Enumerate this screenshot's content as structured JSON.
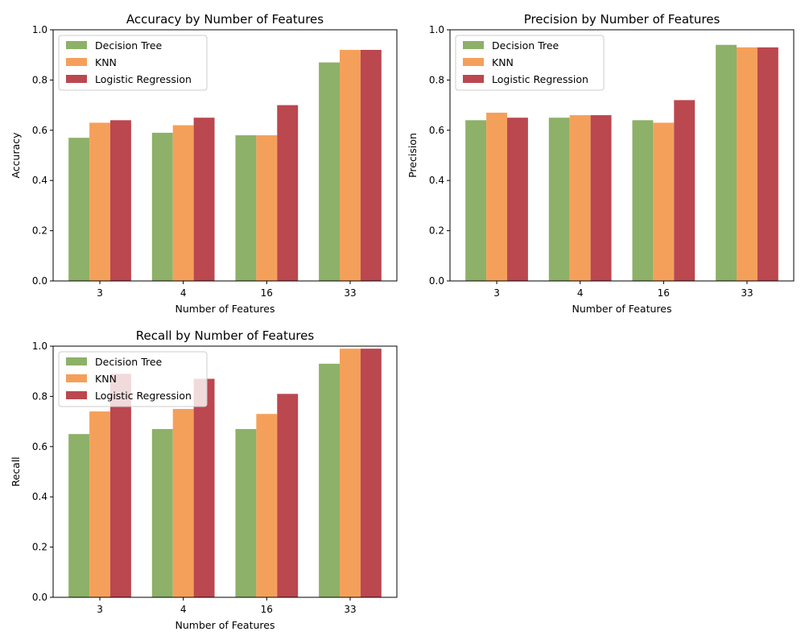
{
  "colors": {
    "Decision Tree": "#8db168",
    "KNN": "#f5a05a",
    "Logistic Regression": "#bb474f"
  },
  "chart_data": [
    {
      "type": "bar",
      "title": "Accuracy by Number of Features",
      "xlabel": "Number of Features",
      "ylabel": "Accuracy",
      "categories": [
        "3",
        "4",
        "16",
        "33"
      ],
      "ylim": [
        0,
        1.0
      ],
      "yticks": [
        "0.0",
        "0.2",
        "0.4",
        "0.6",
        "0.8",
        "1.0"
      ],
      "legend": "top-left",
      "grid": false,
      "series": [
        {
          "name": "Decision Tree",
          "values": [
            0.57,
            0.59,
            0.58,
            0.87
          ]
        },
        {
          "name": "KNN",
          "values": [
            0.63,
            0.62,
            0.58,
            0.92
          ]
        },
        {
          "name": "Logistic Regression",
          "values": [
            0.64,
            0.65,
            0.7,
            0.92
          ]
        }
      ]
    },
    {
      "type": "bar",
      "title": "Precision by Number of Features",
      "xlabel": "Number of Features",
      "ylabel": "Precision",
      "categories": [
        "3",
        "4",
        "16",
        "33"
      ],
      "ylim": [
        0,
        1.0
      ],
      "yticks": [
        "0.0",
        "0.2",
        "0.4",
        "0.6",
        "0.8",
        "1.0"
      ],
      "legend": "top-left",
      "grid": false,
      "series": [
        {
          "name": "Decision Tree",
          "values": [
            0.64,
            0.65,
            0.64,
            0.94
          ]
        },
        {
          "name": "KNN",
          "values": [
            0.67,
            0.66,
            0.63,
            0.93
          ]
        },
        {
          "name": "Logistic Regression",
          "values": [
            0.65,
            0.66,
            0.72,
            0.93
          ]
        }
      ]
    },
    {
      "type": "bar",
      "title": "Recall by Number of Features",
      "xlabel": "Number of Features",
      "ylabel": "Recall",
      "categories": [
        "3",
        "4",
        "16",
        "33"
      ],
      "ylim": [
        0,
        1.0
      ],
      "yticks": [
        "0.0",
        "0.2",
        "0.4",
        "0.6",
        "0.8",
        "1.0"
      ],
      "legend": "top-left",
      "grid": false,
      "series": [
        {
          "name": "Decision Tree",
          "values": [
            0.65,
            0.67,
            0.67,
            0.93
          ]
        },
        {
          "name": "KNN",
          "values": [
            0.74,
            0.75,
            0.73,
            0.99
          ]
        },
        {
          "name": "Logistic Regression",
          "values": [
            0.89,
            0.87,
            0.81,
            0.99
          ]
        }
      ]
    }
  ]
}
